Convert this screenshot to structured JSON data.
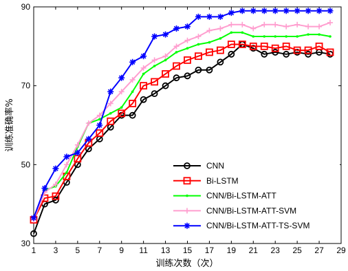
{
  "chart_data": {
    "type": "line",
    "xlabel": "训练次数（次）",
    "ylabel": "训练准确率%",
    "xlim": [
      1,
      29
    ],
    "ylim": [
      30,
      90
    ],
    "xticks": [
      1,
      3,
      5,
      7,
      9,
      11,
      13,
      15,
      17,
      19,
      21,
      23,
      25,
      27,
      29
    ],
    "yticks": [
      30,
      50,
      70,
      90
    ],
    "grid": false,
    "legend_position": "lower-right",
    "x": [
      1,
      2,
      3,
      4,
      5,
      6,
      7,
      8,
      9,
      10,
      11,
      12,
      13,
      14,
      15,
      16,
      17,
      18,
      19,
      20,
      21,
      22,
      23,
      24,
      25,
      26,
      27,
      28
    ],
    "series": [
      {
        "name": "CNN",
        "color": "#000000",
        "marker": "circle",
        "values": [
          32.5,
          40.0,
          41.0,
          45.5,
          50.0,
          54.0,
          56.5,
          59.5,
          62.5,
          62.5,
          66.5,
          68.0,
          70.0,
          72.0,
          72.5,
          74.0,
          74.0,
          76.0,
          78.0,
          80.5,
          79.5,
          78.0,
          78.5,
          78.0,
          78.5,
          78.0,
          78.5,
          78.0
        ]
      },
      {
        "name": "Bi-LSTM",
        "color": "#ff0000",
        "marker": "square",
        "values": [
          36.0,
          41.5,
          42.0,
          47.0,
          51.5,
          55.5,
          58.0,
          61.0,
          63.0,
          65.5,
          70.0,
          71.0,
          73.0,
          75.0,
          76.5,
          77.5,
          78.5,
          79.0,
          80.5,
          80.5,
          80.0,
          80.0,
          79.5,
          80.0,
          79.0,
          79.0,
          80.0,
          78.5
        ]
      },
      {
        "name": "CNN/Bi-LSTM-ATT",
        "color": "#00ff00",
        "marker": "dot",
        "values": [
          36.5,
          43.5,
          44.5,
          48.0,
          54.5,
          60.5,
          61.5,
          63.0,
          64.5,
          68.5,
          73.0,
          75.0,
          76.5,
          78.5,
          79.5,
          80.5,
          81.0,
          82.0,
          83.5,
          83.5,
          82.5,
          82.5,
          82.5,
          82.5,
          82.5,
          83.0,
          83.0,
          82.5
        ]
      },
      {
        "name": "CNN/Bi-LSTM-ATT-SVM",
        "color": "#ff9ecf",
        "marker": "plus",
        "values": [
          36.0,
          43.0,
          45.0,
          50.0,
          55.0,
          60.5,
          62.5,
          65.5,
          68.5,
          71.5,
          74.5,
          76.5,
          77.5,
          80.0,
          81.5,
          82.5,
          84.0,
          84.5,
          85.5,
          85.5,
          84.5,
          85.5,
          85.5,
          85.0,
          85.5,
          85.0,
          85.0,
          86.0
        ]
      },
      {
        "name": "CNN/Bi-LSTM-ATT-TS-SVM",
        "color": "#0000ff",
        "marker": "star",
        "values": [
          36.5,
          44.0,
          49.0,
          52.0,
          53.0,
          56.5,
          60.0,
          68.5,
          72.0,
          76.0,
          77.5,
          82.5,
          83.0,
          84.5,
          85.0,
          87.5,
          87.5,
          87.5,
          88.5,
          89.0,
          89.0,
          89.0,
          89.0,
          89.0,
          89.0,
          89.0,
          89.0,
          89.0
        ]
      }
    ]
  }
}
